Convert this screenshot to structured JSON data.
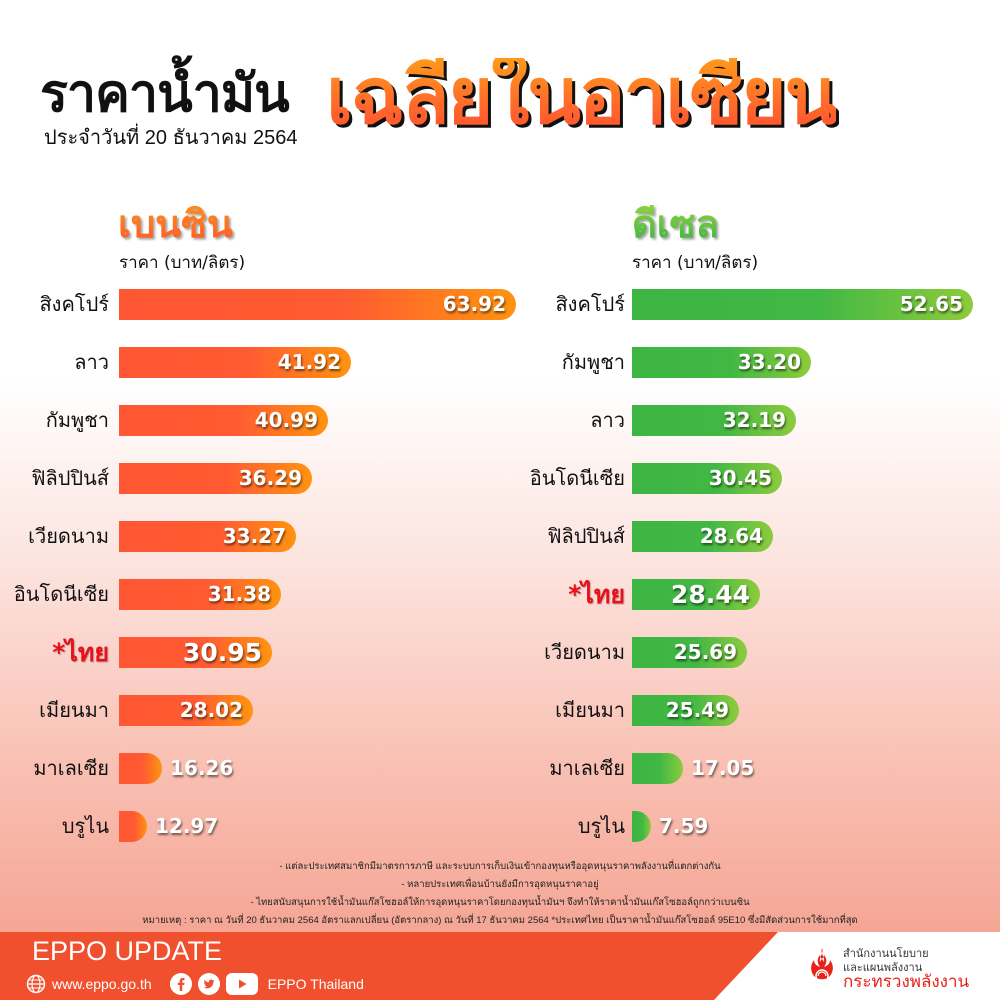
{
  "header": {
    "title_main": "ราคาน้ำมัน",
    "title_highlight": "เฉลี่ยในอาเซียน",
    "date": "ประจำวันที่ 20 ธันวาคม 2564"
  },
  "gasoline": {
    "title": "เบนซิน",
    "unit": "ราคา (บาท/ลิตร)",
    "color": "#ff5733",
    "rows": [
      {
        "label": "สิงคโปร์",
        "value": "63.92",
        "bar_end": 516,
        "inside": true,
        "thai": false
      },
      {
        "label": "ลาว",
        "value": "41.92",
        "bar_end": 351,
        "inside": true,
        "thai": false
      },
      {
        "label": "กัมพูชา",
        "value": "40.99",
        "bar_end": 328,
        "inside": true,
        "thai": false
      },
      {
        "label": "ฟิลิปปินส์",
        "value": "36.29",
        "bar_end": 312,
        "inside": true,
        "thai": false
      },
      {
        "label": "เวียดนาม",
        "value": "33.27",
        "bar_end": 296,
        "inside": true,
        "thai": false
      },
      {
        "label": "อินโดนีเซีย",
        "value": "31.38",
        "bar_end": 281,
        "inside": true,
        "thai": false
      },
      {
        "label": "*ไทย",
        "value": "30.95",
        "bar_end": 272,
        "inside": true,
        "thai": true
      },
      {
        "label": "เมียนมา",
        "value": "28.02",
        "bar_end": 253,
        "inside": true,
        "thai": false
      },
      {
        "label": "มาเลเซีย",
        "value": "16.26",
        "bar_end": 162,
        "inside": false,
        "thai": false
      },
      {
        "label": "บรูไน",
        "value": "12.97",
        "bar_end": 147,
        "inside": false,
        "thai": false
      }
    ]
  },
  "diesel": {
    "title": "ดีเซล",
    "unit": "ราคา (บาท/ลิตร)",
    "color": "#3cb543",
    "rows": [
      {
        "label": "สิงคโปร์",
        "value": "52.65",
        "bar_end": 973,
        "inside": true,
        "thai": false
      },
      {
        "label": "กัมพูชา",
        "value": "33.20",
        "bar_end": 811,
        "inside": true,
        "thai": false
      },
      {
        "label": "ลาว",
        "value": "32.19",
        "bar_end": 796,
        "inside": true,
        "thai": false
      },
      {
        "label": "อินโดนีเซีย",
        "value": "30.45",
        "bar_end": 782,
        "inside": true,
        "thai": false
      },
      {
        "label": "ฟิลิปปินส์",
        "value": "28.64",
        "bar_end": 773,
        "inside": true,
        "thai": false
      },
      {
        "label": "*ไทย",
        "value": "28.44",
        "bar_end": 760,
        "inside": true,
        "thai": true
      },
      {
        "label": "เวียดนาม",
        "value": "25.69",
        "bar_end": 747,
        "inside": true,
        "thai": false
      },
      {
        "label": "เมียนมา",
        "value": "25.49",
        "bar_end": 739,
        "inside": true,
        "thai": false
      },
      {
        "label": "มาเลเซีย",
        "value": "17.05",
        "bar_end": 683,
        "inside": false,
        "thai": false
      },
      {
        "label": "บรูไน",
        "value": "7.59",
        "bar_end": 651,
        "inside": false,
        "thai": false
      }
    ]
  },
  "notes": [
    "- แต่ละประเทศสมาชิกมีมาตรการภาษี และระบบการเก็บเงินเข้ากองทุนหรืออุดหนุนราคาพลังงานที่แตกต่างกัน",
    "- หลายประเทศเพื่อนบ้านยังมีการอุดหนุนราคาอยู่",
    "- ไทยสนับสนุนการใช้น้ำมันแก๊สโซฮอล์ให้การอุดหนุนราคาโดยกองทุนน้ำมันฯ จึงทำให้ราคาน้ำมันแก๊สโซฮอล์ถูกกว่าเบนซิน",
    "หมายเหตุ : ราคา ณ วันที่ 20 ธันวาคม 2564 อัตราแลกเปลี่ยน (อัตรากลาง) ณ วันที่ 17 ธันวาคม 2564 *ประเทศไทย เป็นราคาน้ำมันแก๊สโซฮอล์ 95E10 ซึ่งมีสัดส่วนการใช้มากที่สุด"
  ],
  "footer": {
    "title": "EPPO UPDATE",
    "website": "www.eppo.go.th",
    "social_name": "EPPO Thailand",
    "icons": [
      "globe-icon",
      "facebook-icon",
      "twitter-icon",
      "youtube-icon"
    ],
    "accent": "#f0502e",
    "logo_line1": "สำนักงานนโยบาย",
    "logo_line2": "และแผนพลังงาน",
    "logo_line3": "กระทรวงพลังงาน"
  },
  "chart_data": [
    {
      "type": "bar",
      "orientation": "horizontal",
      "title": "เบนซิน",
      "subtitle": "ราคาน้ำมันเฉลี่ยในอาเซียน ประจำวันที่ 20 ธันวาคม 2564",
      "xlabel": "ราคา (บาท/ลิตร)",
      "ylabel": "",
      "categories": [
        "สิงคโปร์",
        "ลาว",
        "กัมพูชา",
        "ฟิลิปปินส์",
        "เวียดนาม",
        "อินโดนีเซีย",
        "*ไทย",
        "เมียนมา",
        "มาเลเซีย",
        "บรูไน"
      ],
      "values": [
        63.92,
        41.92,
        40.99,
        36.29,
        33.27,
        31.38,
        30.95,
        28.02,
        16.26,
        12.97
      ],
      "grid": false,
      "legend": "none",
      "highlight": "*ไทย"
    },
    {
      "type": "bar",
      "orientation": "horizontal",
      "title": "ดีเซล",
      "subtitle": "ราคาน้ำมันเฉลี่ยในอาเซียน ประจำวันที่ 20 ธันวาคม 2564",
      "xlabel": "ราคา (บาท/ลิตร)",
      "ylabel": "",
      "categories": [
        "สิงคโปร์",
        "กัมพูชา",
        "ลาว",
        "อินโดนีเซีย",
        "ฟิลิปปินส์",
        "*ไทย",
        "เวียดนาม",
        "เมียนมา",
        "มาเลเซีย",
        "บรูไน"
      ],
      "values": [
        52.65,
        33.2,
        32.19,
        30.45,
        28.64,
        28.44,
        25.69,
        25.49,
        17.05,
        7.59
      ],
      "grid": false,
      "legend": "none",
      "highlight": "*ไทย"
    }
  ]
}
